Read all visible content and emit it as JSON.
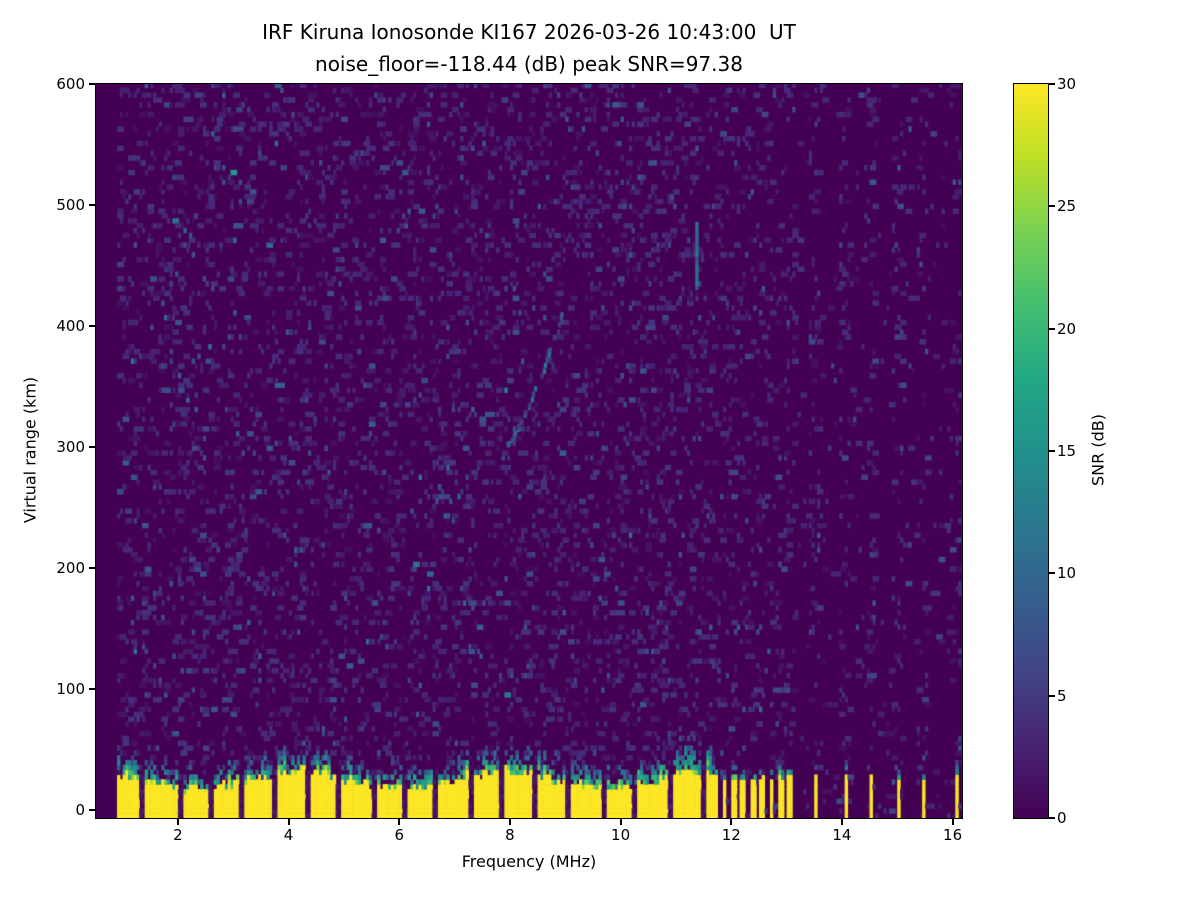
{
  "chart_data": {
    "type": "heatmap",
    "title": "IRF Kiruna Ionosonde KI167 2026-03-26 10:43:00  UT",
    "subtitle": "noise_floor=-118.44 (dB) peak SNR=97.38",
    "xlabel": "Frequency (MHz)",
    "ylabel": "Virtual range (km)",
    "xlim": [
      0.52,
      16.17
    ],
    "ylim": [
      -7,
      600
    ],
    "xticks": [
      2,
      4,
      6,
      8,
      10,
      12,
      14,
      16
    ],
    "yticks": [
      0,
      100,
      200,
      300,
      400,
      500,
      600
    ],
    "grid": false,
    "colorbar": {
      "label": "SNR (dB)",
      "ticks": [
        0,
        5,
        10,
        15,
        20,
        25,
        30
      ],
      "vmin": 0,
      "vmax": 30,
      "position": "right"
    },
    "colormap": "viridis",
    "colormap_stops": [
      "#440154",
      "#482475",
      "#414487",
      "#355f8d",
      "#2a788e",
      "#21918c",
      "#22a884",
      "#44bf70",
      "#7ad151",
      "#bddf26",
      "#fde725"
    ],
    "background_color": "#440154",
    "peak_color": "#fde725",
    "features": {
      "swept_band_mhz": [
        0.9,
        11.62
      ],
      "ground_pulse": {
        "range_km": [
          -7,
          28
        ],
        "snr_db": 30
      },
      "ground_pulse_notch_first_mhz": 1.38,
      "ground_pulse_notch_spacing_mhz": 0.59,
      "sampled_spot_frequencies_mhz": [
        11.68,
        11.85,
        12.02,
        12.19,
        12.36,
        12.53,
        12.7,
        12.87,
        13.04,
        13.5,
        14.05,
        14.5,
        15.0,
        15.45,
        16.05
      ],
      "background_noise_snr_db": [
        0,
        6
      ],
      "echo_trace": {
        "freq_mhz": [
          7.95,
          8.95
        ],
        "range_km": [
          300,
          410
        ],
        "snr_db": 9
      },
      "streak": {
        "freq_mhz": 11.35,
        "range_km": [
          430,
          485
        ],
        "snr_db": 11
      }
    }
  }
}
